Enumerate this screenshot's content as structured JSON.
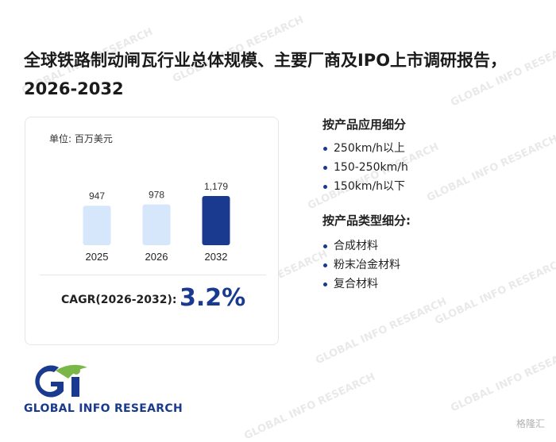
{
  "title": "全球铁路制动闸瓦行业总体规模、主要厂商及IPO上市调研报告，2026-2032",
  "card": {
    "unit": "单位: 百万美元",
    "cagr_label": "CAGR(2026-2032):",
    "cagr_value": "3.2%"
  },
  "chart_data": {
    "type": "bar",
    "categories": [
      "2025",
      "2026",
      "2032"
    ],
    "values": [
      947,
      978,
      1179
    ],
    "value_labels": [
      "947",
      "978",
      "1,179"
    ],
    "ylabel": "",
    "colors": [
      "#d6e7fb",
      "#d6e7fb",
      "#1a3a8f"
    ]
  },
  "sections": [
    {
      "title": "按产品应用细分",
      "items": [
        "250km/h以上",
        "150-250km/h",
        "150km/h以下"
      ]
    },
    {
      "title": "按产品类型细分:",
      "items": [
        "合成材料",
        "粉末冶金材料",
        "复合材料"
      ]
    }
  ],
  "logo_text": "GLOBAL INFO RESEARCH",
  "watermark_text": "GLOBAL INFO RESEARCH",
  "corner_text": "格隆汇"
}
